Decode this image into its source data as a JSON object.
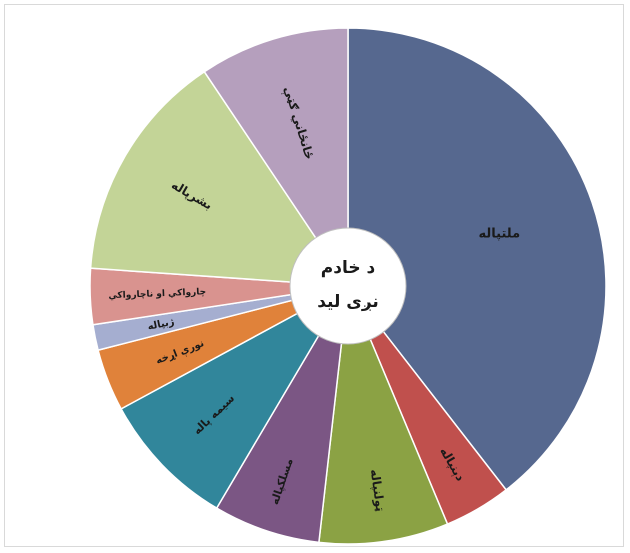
{
  "chart_data": {
    "type": "pie",
    "style": "doughnut",
    "title": "",
    "center_label": [
      "د خادم",
      "نږی لید"
    ],
    "slices": [
      {
        "label": "ملتپاله",
        "value": 39.5,
        "color": "#56688f"
      },
      {
        "label": "دېنپاله",
        "value": 4.2,
        "color": "#c0504d"
      },
      {
        "label": "ټولنپاله",
        "value": 8.1,
        "color": "#8ba244"
      },
      {
        "label": "مسلکپاله",
        "value": 6.7,
        "color": "#7b5684"
      },
      {
        "label": "سیمه پاله",
        "value": 8.6,
        "color": "#31869b"
      },
      {
        "label": "نورې اړخه",
        "value": 3.9,
        "color": "#e0823a"
      },
      {
        "label": "ژبپاله",
        "value": 1.6,
        "color": "#a5aed0"
      },
      {
        "label": "چارواکي او ناچارواکي",
        "value": 3.5,
        "color": "#d9938f"
      },
      {
        "label": "بشرپاله",
        "value": 14.5,
        "color": "#c3d497"
      },
      {
        "label": "ځانځاني ګټې",
        "value": 9.4,
        "color": "#b59fbd"
      }
    ],
    "legend": "none",
    "data_labels": "inside slices"
  }
}
